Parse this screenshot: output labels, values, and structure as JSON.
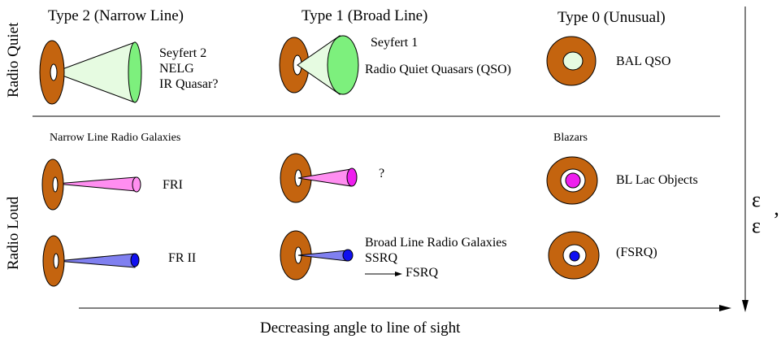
{
  "column_headers": {
    "type2": "Type 2 (Narrow Line)",
    "type1": "Type 1 (Broad Line)",
    "type0": "Type 0 (Unusual)"
  },
  "row_headers": {
    "quiet": "Radio Quiet",
    "loud": "Radio Loud"
  },
  "radio_quiet": {
    "type2_lines": [
      "Seyfert 2",
      "NELG",
      "IR Quasar?"
    ],
    "type1_top": "Seyfert 1",
    "type1_main": "Radio Quiet Quasars (QSO)",
    "type0": "BAL QSO"
  },
  "radio_loud": {
    "type2_header": "Narrow Line Radio Galaxies",
    "type0_header": "Blazars",
    "fri": "FRI",
    "fri_type1": "?",
    "bl_lac": "BL Lac Objects",
    "frii": "FR II",
    "frii_type1_lines": [
      "Broad Line Radio Galaxies",
      "SSRQ"
    ],
    "fsrq_arrow_label": "FSRQ",
    "fsrq": "(FSRQ)"
  },
  "axis": {
    "bottom": "Decreasing angle to line of sight",
    "right_symbol": "ε",
    "right_symbol2": "ε",
    "right_mark": "’"
  },
  "colors": {
    "torus": "#c4640f",
    "cone_light_green": "#e6fbe1",
    "blob_green": "#7df07d",
    "center_light": "#e6fbe1",
    "jet_pink": "#ff8ef0",
    "blob_magenta": "#ee1fee",
    "jet_blue": "#8080f0",
    "blob_blue": "#1010f0"
  }
}
